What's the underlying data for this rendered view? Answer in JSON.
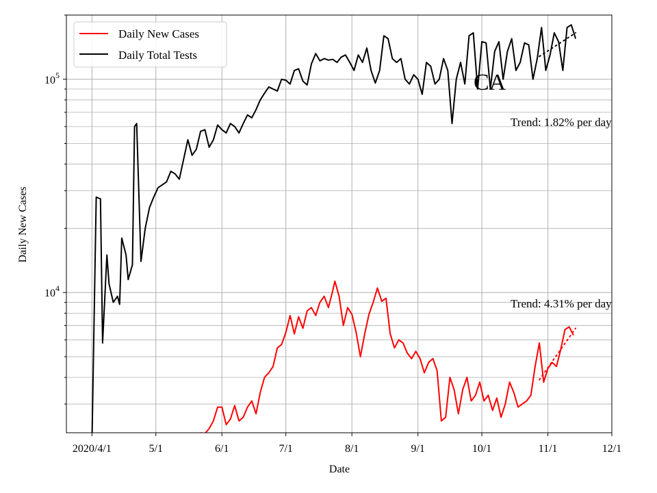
{
  "chart_data": {
    "type": "line",
    "xlabel": "Date",
    "ylabel": "Daily New Cases",
    "yscale": "log",
    "ylim": [
      2200,
      200000
    ],
    "xlim": [
      "2020-03-20",
      "2020-12-01"
    ],
    "grid": true,
    "legend_position": "top-left",
    "x_ticks": [
      {
        "date": "2020-04-01",
        "label": "2020/4/1"
      },
      {
        "date": "2020-05-01",
        "label": "5/1"
      },
      {
        "date": "2020-06-01",
        "label": "6/1"
      },
      {
        "date": "2020-07-01",
        "label": "7/1"
      },
      {
        "date": "2020-08-01",
        "label": "8/1"
      },
      {
        "date": "2020-09-01",
        "label": "9/1"
      },
      {
        "date": "2020-10-01",
        "label": "10/1"
      },
      {
        "date": "2020-11-01",
        "label": "11/1"
      },
      {
        "date": "2020-12-01",
        "label": "12/1"
      }
    ],
    "y_major_ticks": [
      {
        "value": 10000,
        "base": "10",
        "exp": "4"
      },
      {
        "value": 100000,
        "base": "10",
        "exp": "5"
      }
    ],
    "annotations": {
      "state": "CA",
      "trend_tests": "Trend: 1.82% per day",
      "trend_cases": "Trend: 4.31% per day"
    },
    "series": [
      {
        "name": "Daily New Cases",
        "color": "#ff0000",
        "points": [
          [
            "2020-05-22",
            2200
          ],
          [
            "2020-05-24",
            2180
          ],
          [
            "2020-05-26",
            2300
          ],
          [
            "2020-05-28",
            2500
          ],
          [
            "2020-05-30",
            2900
          ],
          [
            "2020-06-01",
            2900
          ],
          [
            "2020-06-03",
            2400
          ],
          [
            "2020-06-05",
            2550
          ],
          [
            "2020-06-07",
            2950
          ],
          [
            "2020-06-09",
            2500
          ],
          [
            "2020-06-11",
            2600
          ],
          [
            "2020-06-13",
            2900
          ],
          [
            "2020-06-15",
            3100
          ],
          [
            "2020-06-17",
            2700
          ],
          [
            "2020-06-19",
            3400
          ],
          [
            "2020-06-21",
            4000
          ],
          [
            "2020-06-23",
            4200
          ],
          [
            "2020-06-25",
            4500
          ],
          [
            "2020-06-27",
            5500
          ],
          [
            "2020-06-29",
            5700
          ],
          [
            "2020-07-01",
            6500
          ],
          [
            "2020-07-03",
            7800
          ],
          [
            "2020-07-05",
            6400
          ],
          [
            "2020-07-07",
            7700
          ],
          [
            "2020-07-09",
            6800
          ],
          [
            "2020-07-11",
            8200
          ],
          [
            "2020-07-13",
            8500
          ],
          [
            "2020-07-15",
            7800
          ],
          [
            "2020-07-17",
            9000
          ],
          [
            "2020-07-19",
            9600
          ],
          [
            "2020-07-21",
            8500
          ],
          [
            "2020-07-23",
            10200
          ],
          [
            "2020-07-24",
            11300
          ],
          [
            "2020-07-26",
            9600
          ],
          [
            "2020-07-28",
            7000
          ],
          [
            "2020-07-30",
            8500
          ],
          [
            "2020-08-01",
            7900
          ],
          [
            "2020-08-03",
            6500
          ],
          [
            "2020-08-05",
            5000
          ],
          [
            "2020-08-07",
            6400
          ],
          [
            "2020-08-09",
            7900
          ],
          [
            "2020-08-11",
            9000
          ],
          [
            "2020-08-13",
            10500
          ],
          [
            "2020-08-15",
            9100
          ],
          [
            "2020-08-17",
            9400
          ],
          [
            "2020-08-19",
            6400
          ],
          [
            "2020-08-21",
            5500
          ],
          [
            "2020-08-23",
            6000
          ],
          [
            "2020-08-25",
            5800
          ],
          [
            "2020-08-27",
            5200
          ],
          [
            "2020-08-29",
            4900
          ],
          [
            "2020-08-31",
            5300
          ],
          [
            "2020-09-02",
            4900
          ],
          [
            "2020-09-04",
            4200
          ],
          [
            "2020-09-06",
            4700
          ],
          [
            "2020-09-08",
            4900
          ],
          [
            "2020-09-10",
            4300
          ],
          [
            "2020-09-12",
            2500
          ],
          [
            "2020-09-14",
            2600
          ],
          [
            "2020-09-16",
            4000
          ],
          [
            "2020-09-18",
            3500
          ],
          [
            "2020-09-20",
            2700
          ],
          [
            "2020-09-22",
            3500
          ],
          [
            "2020-09-24",
            4000
          ],
          [
            "2020-09-26",
            3100
          ],
          [
            "2020-09-28",
            3300
          ],
          [
            "2020-09-30",
            3800
          ],
          [
            "2020-10-02",
            3100
          ],
          [
            "2020-10-04",
            3300
          ],
          [
            "2020-10-06",
            2800
          ],
          [
            "2020-10-08",
            3200
          ],
          [
            "2020-10-10",
            2600
          ],
          [
            "2020-10-12",
            3000
          ],
          [
            "2020-10-14",
            3800
          ],
          [
            "2020-10-16",
            3400
          ],
          [
            "2020-10-18",
            2900
          ],
          [
            "2020-10-20",
            3000
          ],
          [
            "2020-10-22",
            3100
          ],
          [
            "2020-10-24",
            3300
          ],
          [
            "2020-10-26",
            4500
          ],
          [
            "2020-10-28",
            5800
          ],
          [
            "2020-10-30",
            3800
          ],
          [
            "2020-11-01",
            4400
          ],
          [
            "2020-11-03",
            4700
          ],
          [
            "2020-11-05",
            4500
          ],
          [
            "2020-11-07",
            5400
          ],
          [
            "2020-11-09",
            6700
          ],
          [
            "2020-11-11",
            6900
          ],
          [
            "2020-11-13",
            6300
          ]
        ]
      },
      {
        "name": "Daily Total Tests",
        "color": "#000000",
        "points": [
          [
            "2020-03-27",
            2200
          ],
          [
            "2020-03-28",
            2050
          ],
          [
            "2020-03-31",
            2100
          ],
          [
            "2020-04-01",
            2000
          ],
          [
            "2020-04-03",
            28000
          ],
          [
            "2020-04-05",
            27500
          ],
          [
            "2020-04-06",
            5800
          ],
          [
            "2020-04-08",
            15000
          ],
          [
            "2020-04-09",
            11000
          ],
          [
            "2020-04-11",
            9000
          ],
          [
            "2020-04-13",
            9600
          ],
          [
            "2020-04-14",
            8800
          ],
          [
            "2020-04-15",
            18000
          ],
          [
            "2020-04-17",
            15000
          ],
          [
            "2020-04-18",
            11500
          ],
          [
            "2020-04-20",
            13500
          ],
          [
            "2020-04-21",
            60000
          ],
          [
            "2020-04-22",
            62000
          ],
          [
            "2020-04-24",
            14000
          ],
          [
            "2020-04-26",
            20000
          ],
          [
            "2020-04-28",
            25000
          ],
          [
            "2020-04-30",
            28000
          ],
          [
            "2020-05-02",
            31000
          ],
          [
            "2020-05-04",
            32000
          ],
          [
            "2020-05-06",
            33000
          ],
          [
            "2020-05-08",
            37000
          ],
          [
            "2020-05-10",
            36000
          ],
          [
            "2020-05-12",
            34000
          ],
          [
            "2020-05-14",
            42000
          ],
          [
            "2020-05-16",
            52000
          ],
          [
            "2020-05-18",
            44000
          ],
          [
            "2020-05-20",
            47000
          ],
          [
            "2020-05-22",
            57000
          ],
          [
            "2020-05-24",
            58000
          ],
          [
            "2020-05-26",
            48000
          ],
          [
            "2020-05-28",
            52000
          ],
          [
            "2020-05-30",
            61000
          ],
          [
            "2020-06-01",
            58000
          ],
          [
            "2020-06-03",
            56000
          ],
          [
            "2020-06-05",
            62000
          ],
          [
            "2020-06-07",
            60000
          ],
          [
            "2020-06-09",
            56000
          ],
          [
            "2020-06-11",
            62000
          ],
          [
            "2020-06-13",
            68000
          ],
          [
            "2020-06-15",
            66000
          ],
          [
            "2020-06-17",
            72000
          ],
          [
            "2020-06-19",
            80000
          ],
          [
            "2020-06-21",
            86000
          ],
          [
            "2020-06-23",
            92000
          ],
          [
            "2020-06-25",
            90000
          ],
          [
            "2020-06-27",
            88000
          ],
          [
            "2020-06-29",
            100000
          ],
          [
            "2020-07-01",
            99000
          ],
          [
            "2020-07-03",
            95000
          ],
          [
            "2020-07-05",
            110000
          ],
          [
            "2020-07-07",
            112000
          ],
          [
            "2020-07-09",
            98000
          ],
          [
            "2020-07-11",
            94000
          ],
          [
            "2020-07-13",
            118000
          ],
          [
            "2020-07-15",
            132000
          ],
          [
            "2020-07-17",
            122000
          ],
          [
            "2020-07-19",
            125000
          ],
          [
            "2020-07-21",
            123000
          ],
          [
            "2020-07-23",
            124000
          ],
          [
            "2020-07-25",
            120000
          ],
          [
            "2020-07-27",
            127000
          ],
          [
            "2020-07-29",
            130000
          ],
          [
            "2020-07-31",
            120000
          ],
          [
            "2020-08-02",
            110000
          ],
          [
            "2020-08-04",
            130000
          ],
          [
            "2020-08-06",
            120000
          ],
          [
            "2020-08-08",
            140000
          ],
          [
            "2020-08-10",
            110000
          ],
          [
            "2020-08-12",
            96000
          ],
          [
            "2020-08-14",
            110000
          ],
          [
            "2020-08-16",
            160000
          ],
          [
            "2020-08-18",
            155000
          ],
          [
            "2020-08-20",
            125000
          ],
          [
            "2020-08-22",
            120000
          ],
          [
            "2020-08-24",
            125000
          ],
          [
            "2020-08-26",
            100000
          ],
          [
            "2020-08-28",
            95000
          ],
          [
            "2020-08-30",
            105000
          ],
          [
            "2020-09-01",
            100000
          ],
          [
            "2020-09-03",
            85000
          ],
          [
            "2020-09-05",
            120000
          ],
          [
            "2020-09-07",
            115000
          ],
          [
            "2020-09-09",
            95000
          ],
          [
            "2020-09-11",
            100000
          ],
          [
            "2020-09-13",
            125000
          ],
          [
            "2020-09-15",
            110000
          ],
          [
            "2020-09-17",
            62000
          ],
          [
            "2020-09-19",
            100000
          ],
          [
            "2020-09-21",
            120000
          ],
          [
            "2020-09-23",
            95000
          ],
          [
            "2020-09-25",
            160000
          ],
          [
            "2020-09-27",
            165000
          ],
          [
            "2020-09-29",
            90000
          ],
          [
            "2020-10-01",
            150000
          ],
          [
            "2020-10-03",
            148000
          ],
          [
            "2020-10-05",
            90000
          ],
          [
            "2020-10-07",
            135000
          ],
          [
            "2020-10-09",
            150000
          ],
          [
            "2020-10-11",
            100000
          ],
          [
            "2020-10-13",
            135000
          ],
          [
            "2020-10-15",
            155000
          ],
          [
            "2020-10-17",
            110000
          ],
          [
            "2020-10-19",
            120000
          ],
          [
            "2020-10-21",
            148000
          ],
          [
            "2020-10-23",
            145000
          ],
          [
            "2020-10-25",
            100000
          ],
          [
            "2020-10-27",
            125000
          ],
          [
            "2020-10-29",
            175000
          ],
          [
            "2020-10-31",
            110000
          ],
          [
            "2020-11-02",
            130000
          ],
          [
            "2020-11-04",
            165000
          ],
          [
            "2020-11-06",
            150000
          ],
          [
            "2020-11-08",
            110000
          ],
          [
            "2020-11-10",
            175000
          ],
          [
            "2020-11-12",
            180000
          ],
          [
            "2020-11-14",
            155000
          ]
        ]
      }
    ],
    "trend_lines": [
      {
        "series": "Daily Total Tests",
        "color": "#000000",
        "points": [
          [
            "2020-10-28",
            128000
          ],
          [
            "2020-11-14",
            165000
          ]
        ]
      },
      {
        "series": "Daily New Cases",
        "color": "#ff0000",
        "points": [
          [
            "2020-10-28",
            3900
          ],
          [
            "2020-11-14",
            6800
          ]
        ]
      }
    ]
  }
}
